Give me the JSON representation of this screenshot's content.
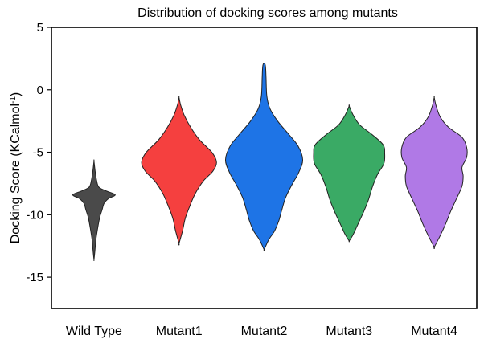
{
  "chart_data": {
    "type": "violin",
    "title": "Distribution of docking scores among mutants",
    "ylabel_main": "Docking Score (KCalmol",
    "ylabel_sup": "-1",
    "ylabel_end": ")",
    "xlabel": "",
    "ylim": [
      -17.5,
      5
    ],
    "yticks": [
      5,
      0,
      -5,
      -10,
      -15
    ],
    "grid": false,
    "categories": [
      "Wild Type",
      "Mutant1",
      "Mutant2",
      "Mutant3",
      "Mutant4"
    ],
    "series": [
      {
        "category": "Wild Type",
        "color": "#4a4a4a",
        "profile": [
          [
            -5.7,
            0.0
          ],
          [
            -6.5,
            0.03
          ],
          [
            -7.3,
            0.07
          ],
          [
            -7.8,
            0.13
          ],
          [
            -8.1,
            0.32
          ],
          [
            -8.4,
            0.55
          ],
          [
            -8.7,
            0.38
          ],
          [
            -9.1,
            0.26
          ],
          [
            -9.6,
            0.21
          ],
          [
            -10.2,
            0.15
          ],
          [
            -11.0,
            0.1
          ],
          [
            -12.0,
            0.05
          ],
          [
            -13.0,
            0.02
          ],
          [
            -13.6,
            0.0
          ]
        ]
      },
      {
        "category": "Mutant1",
        "color": "#f5403f",
        "profile": [
          [
            -0.6,
            0.0
          ],
          [
            -1.2,
            0.04
          ],
          [
            -2.0,
            0.13
          ],
          [
            -3.0,
            0.3
          ],
          [
            -4.0,
            0.53
          ],
          [
            -5.0,
            0.85
          ],
          [
            -5.8,
            0.97
          ],
          [
            -6.5,
            0.88
          ],
          [
            -7.3,
            0.63
          ],
          [
            -8.3,
            0.42
          ],
          [
            -9.3,
            0.28
          ],
          [
            -10.3,
            0.16
          ],
          [
            -11.3,
            0.09
          ],
          [
            -12.3,
            0.0
          ]
        ]
      },
      {
        "category": "Mutant2",
        "color": "#1e74e6",
        "profile": [
          [
            2.0,
            0.03
          ],
          [
            1.0,
            0.05
          ],
          [
            -0.5,
            0.07
          ],
          [
            -1.5,
            0.15
          ],
          [
            -2.5,
            0.35
          ],
          [
            -3.5,
            0.62
          ],
          [
            -4.5,
            0.88
          ],
          [
            -5.6,
            1.0
          ],
          [
            -6.6,
            0.9
          ],
          [
            -7.6,
            0.72
          ],
          [
            -8.6,
            0.56
          ],
          [
            -9.6,
            0.46
          ],
          [
            -10.5,
            0.38
          ],
          [
            -11.3,
            0.27
          ],
          [
            -12.0,
            0.12
          ],
          [
            -12.8,
            0.0
          ]
        ]
      },
      {
        "category": "Mutant3",
        "color": "#3aaa65",
        "profile": [
          [
            -1.3,
            0.0
          ],
          [
            -2.0,
            0.1
          ],
          [
            -2.8,
            0.27
          ],
          [
            -3.6,
            0.6
          ],
          [
            -4.4,
            0.88
          ],
          [
            -5.1,
            0.92
          ],
          [
            -5.9,
            0.9
          ],
          [
            -6.8,
            0.73
          ],
          [
            -7.8,
            0.6
          ],
          [
            -8.8,
            0.5
          ],
          [
            -9.8,
            0.37
          ],
          [
            -10.8,
            0.22
          ],
          [
            -11.6,
            0.1
          ],
          [
            -12.1,
            0.0
          ]
        ]
      },
      {
        "category": "Mutant4",
        "color": "#b079e6",
        "profile": [
          [
            -0.6,
            0.0
          ],
          [
            -1.3,
            0.05
          ],
          [
            -2.2,
            0.16
          ],
          [
            -3.0,
            0.37
          ],
          [
            -3.8,
            0.72
          ],
          [
            -4.6,
            0.84
          ],
          [
            -5.4,
            0.84
          ],
          [
            -6.2,
            0.72
          ],
          [
            -6.9,
            0.75
          ],
          [
            -7.7,
            0.72
          ],
          [
            -8.7,
            0.58
          ],
          [
            -9.7,
            0.43
          ],
          [
            -10.7,
            0.3
          ],
          [
            -11.7,
            0.15
          ],
          [
            -12.6,
            0.0
          ]
        ]
      }
    ]
  }
}
